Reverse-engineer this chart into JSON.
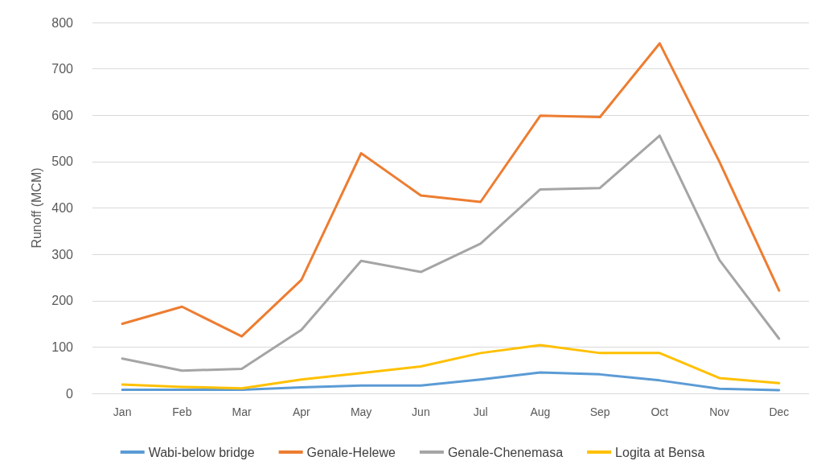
{
  "chart_data": {
    "type": "line",
    "ylabel": "Runoff (MCM)",
    "categories": [
      "Jan",
      "Feb",
      "Mar",
      "Apr",
      "May",
      "Jun",
      "Jul",
      "Aug",
      "Sep",
      "Oct",
      "Nov",
      "Dec"
    ],
    "series": [
      {
        "name": "Wabi-below bridge",
        "color": "#5b9bd5",
        "values": [
          8,
          8,
          8,
          13,
          17,
          17,
          30,
          45,
          41,
          28,
          10,
          7
        ]
      },
      {
        "name": "Genale-Helewe",
        "color": "#ed7d31",
        "values": [
          150,
          187,
          123,
          245,
          518,
          427,
          413,
          599,
          596,
          755,
          500,
          222
        ]
      },
      {
        "name": "Genale-Chenemasa",
        "color": "#a5a5a5",
        "values": [
          75,
          49,
          53,
          137,
          286,
          262,
          323,
          440,
          443,
          556,
          288,
          118
        ]
      },
      {
        "name": "Logita at Bensa",
        "color": "#ffc000",
        "values": [
          19,
          14,
          11,
          30,
          44,
          58,
          87,
          104,
          87,
          87,
          33,
          22
        ]
      }
    ],
    "ylim": [
      0,
      800
    ],
    "yticks": [
      0,
      100,
      200,
      300,
      400,
      500,
      600,
      700,
      800
    ],
    "grid": "y",
    "legend": "bottom",
    "marker": "none",
    "line_style": "solid"
  }
}
